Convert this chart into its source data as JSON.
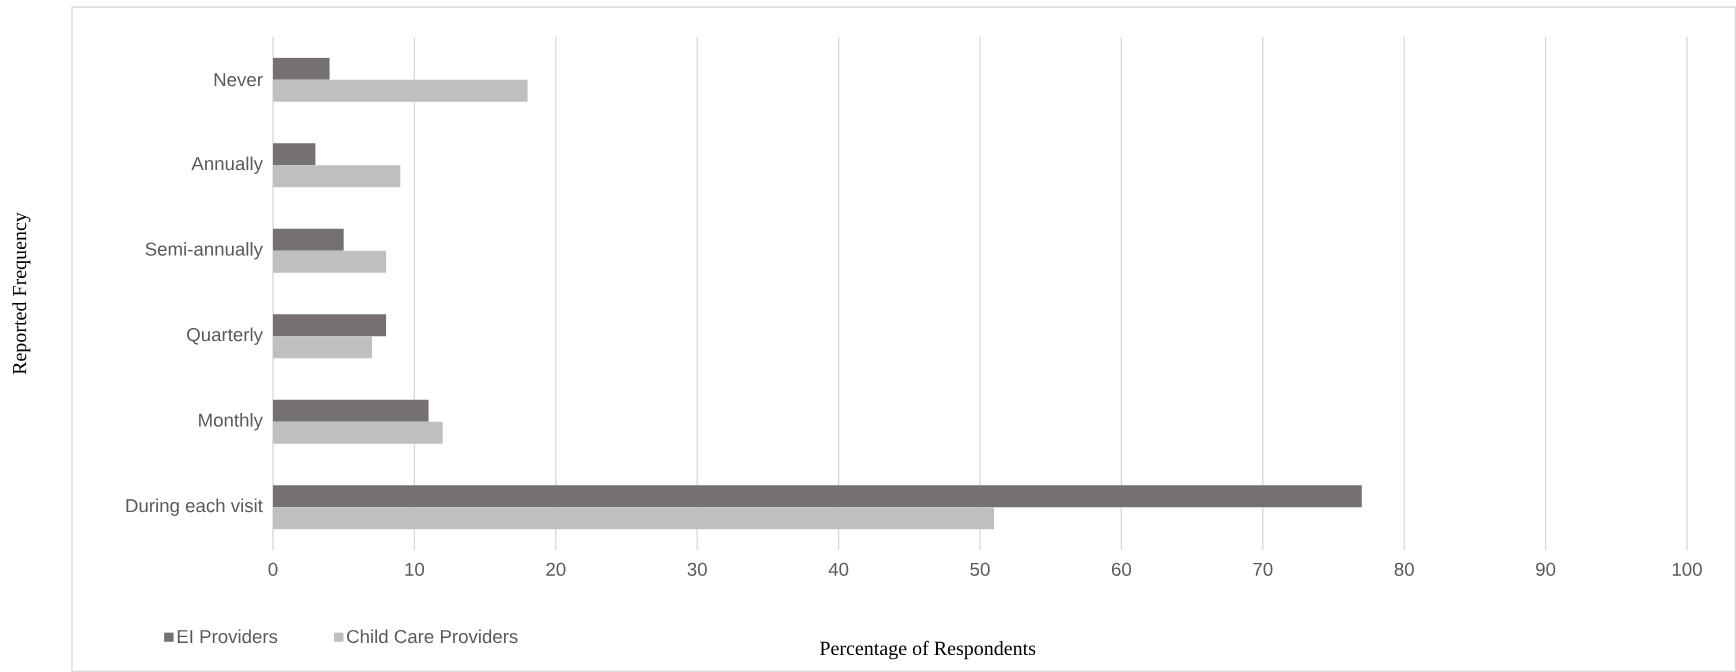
{
  "chart_data": {
    "type": "bar",
    "orientation": "horizontal",
    "categories": [
      "Never",
      "Annually",
      "Semi-annually",
      "Quarterly",
      "Monthly",
      "During each visit"
    ],
    "series": [
      {
        "name": "EI Providers",
        "color": "#767171",
        "values": [
          4,
          3,
          5,
          8,
          11,
          77
        ]
      },
      {
        "name": "Child Care Providers",
        "color": "#bfbfbf",
        "values": [
          18,
          9,
          8,
          7,
          12,
          51
        ]
      }
    ],
    "xlim": [
      0,
      100
    ],
    "xticks": [
      0,
      10,
      20,
      30,
      40,
      50,
      60,
      70,
      80,
      90,
      100
    ],
    "xlabel": "Percentage of Respondents",
    "ylabel": "Reported Frequency",
    "grid": "x",
    "legend": "bottom left"
  }
}
